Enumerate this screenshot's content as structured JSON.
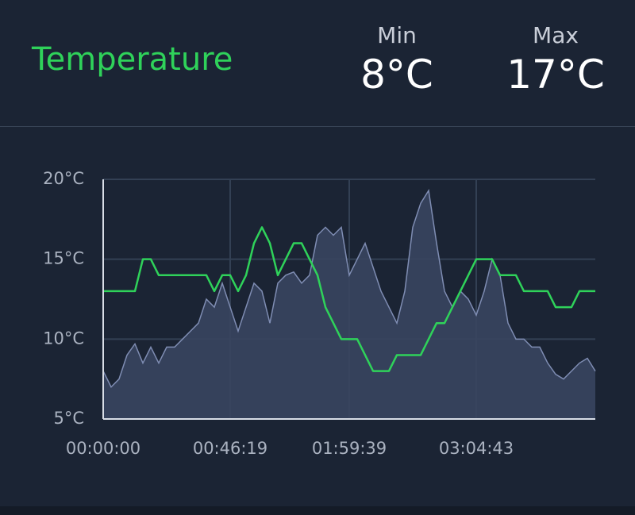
{
  "header": {
    "title": "Temperature",
    "min": {
      "label": "Min",
      "value": "8°C"
    },
    "max": {
      "label": "Max",
      "value": "17°C"
    }
  },
  "chart_data": {
    "type": "area",
    "categories": [
      "00:00:00",
      null,
      null,
      null,
      null,
      null,
      null,
      null,
      null,
      null,
      null,
      null,
      null,
      null,
      null,
      null,
      "00:46:19",
      null,
      null,
      null,
      null,
      null,
      null,
      null,
      null,
      null,
      null,
      null,
      null,
      null,
      null,
      "01:59:39",
      null,
      null,
      null,
      null,
      null,
      null,
      null,
      null,
      null,
      null,
      null,
      null,
      null,
      null,
      null,
      "03:04:43",
      null,
      null,
      null,
      null,
      null,
      null,
      null,
      null,
      null,
      null,
      null,
      null,
      null,
      null,
      null
    ],
    "series": [
      {
        "color": "#7f8db3",
        "fill": "#38455f",
        "values": [
          8,
          7,
          7.5,
          9,
          9.7,
          8.5,
          9.5,
          8.5,
          9.5,
          9.5,
          10,
          10.5,
          11,
          12.5,
          12,
          13.5,
          12,
          10.5,
          12,
          13.5,
          13,
          11,
          13.5,
          14,
          14.2,
          13.5,
          14,
          16.5,
          17,
          16.5,
          17,
          14,
          15,
          16,
          14.5,
          13,
          12,
          11,
          13,
          17,
          18.5,
          19.3,
          16,
          13,
          12,
          13,
          12.5,
          11.5,
          13,
          15,
          14,
          11,
          10,
          10,
          9.5,
          9.5,
          8.5,
          7.8,
          7.5,
          8,
          8.5,
          8.8,
          8
        ]
      },
      {
        "color": "#2fd25a",
        "values": [
          13,
          13,
          13,
          13,
          13,
          15,
          15,
          14,
          14,
          14,
          14,
          14,
          14,
          14,
          13,
          14,
          14,
          13,
          14,
          16,
          17,
          16,
          14,
          15,
          16,
          16,
          15,
          14,
          12,
          11,
          10,
          10,
          10,
          9,
          8,
          8,
          8,
          9,
          9,
          9,
          9,
          10,
          11,
          11,
          12,
          13,
          14,
          15,
          15,
          15,
          14,
          14,
          14,
          13,
          13,
          13,
          13,
          12,
          12,
          12,
          13,
          13,
          13
        ]
      }
    ],
    "ylim": [
      5,
      20
    ],
    "yticks": [
      {
        "value": 5,
        "label": "5°C"
      },
      {
        "value": 10,
        "label": "10°C"
      },
      {
        "value": 15,
        "label": "15°C"
      },
      {
        "value": 20,
        "label": "20°C"
      }
    ],
    "grid": true
  }
}
